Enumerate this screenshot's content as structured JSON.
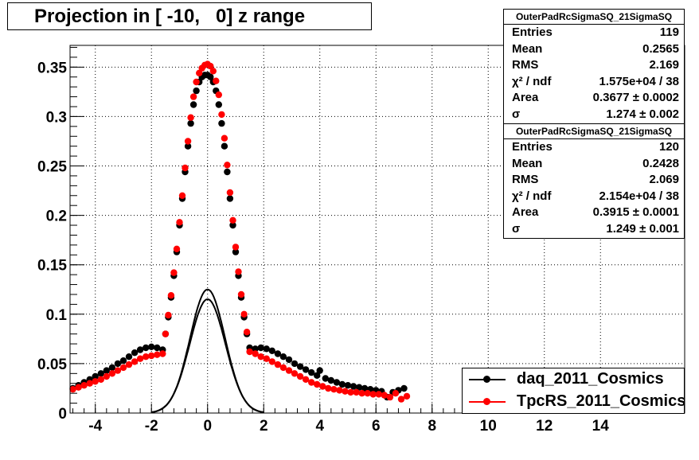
{
  "title": "Projection in [ -10,   0] z range",
  "stats_boxes": [
    {
      "name": "OuterPadRcSigmaSQ_21SigmaSQ",
      "rows": [
        {
          "label": "Entries",
          "value": "119"
        },
        {
          "label": "Mean",
          "value": "0.2565"
        },
        {
          "label": "RMS",
          "value": "2.169"
        },
        {
          "label": "χ² / ndf",
          "value": "1.575e+04 / 38"
        },
        {
          "label": "Area",
          "value": "0.3677 ± 0.0002"
        },
        {
          "label": "σ",
          "value": "1.274 ± 0.002"
        }
      ]
    },
    {
      "name": "OuterPadRcSigmaSQ_21SigmaSQ",
      "rows": [
        {
          "label": "Entries",
          "value": "120"
        },
        {
          "label": "Mean",
          "value": "0.2428"
        },
        {
          "label": "RMS",
          "value": "2.069"
        },
        {
          "label": "χ² / ndf",
          "value": "2.154e+04 / 38"
        },
        {
          "label": "Area",
          "value": "0.3915 ± 0.0001"
        },
        {
          "label": "σ",
          "value": "1.249 ± 0.001"
        }
      ]
    }
  ],
  "legend": [
    {
      "name": "daq_2011_Cosmics",
      "color": "#000000"
    },
    {
      "name": "TpcRS_2011_Cosmics",
      "color": "#ff0000"
    }
  ],
  "chart_data": {
    "type": "scatter",
    "title": "Projection in [ -10,   0] z range",
    "xlabel": "",
    "ylabel": "",
    "xlim": [
      -4.9,
      17.0
    ],
    "ylim": [
      0,
      0.372
    ],
    "x_ticks": [
      -4,
      -2,
      0,
      2,
      4,
      6,
      8,
      10,
      12,
      14
    ],
    "y_ticks": [
      0,
      0.05,
      0.1,
      0.15,
      0.2,
      0.25,
      0.3,
      0.35
    ],
    "y_tick_labels": [
      "0",
      "0.05",
      "0.1",
      "0.15",
      "0.2",
      "0.25",
      "0.3",
      "0.35"
    ],
    "grid": true,
    "legend_position": "bottom-right",
    "series": [
      {
        "name": "daq_2011_Cosmics",
        "color": "#000000",
        "points": [
          [
            -4.8,
            0.025
          ],
          [
            -4.6,
            0.028
          ],
          [
            -4.4,
            0.031
          ],
          [
            -4.2,
            0.034
          ],
          [
            -4.0,
            0.037
          ],
          [
            -3.8,
            0.04
          ],
          [
            -3.6,
            0.043
          ],
          [
            -3.4,
            0.046
          ],
          [
            -3.2,
            0.05
          ],
          [
            -3.0,
            0.053
          ],
          [
            -2.8,
            0.057
          ],
          [
            -2.6,
            0.061
          ],
          [
            -2.4,
            0.064
          ],
          [
            -2.2,
            0.066
          ],
          [
            -2.0,
            0.067
          ],
          [
            -1.8,
            0.066
          ],
          [
            -1.6,
            0.064
          ],
          [
            -1.5,
            0.08
          ],
          [
            -1.4,
            0.097
          ],
          [
            -1.3,
            0.117
          ],
          [
            -1.2,
            0.139
          ],
          [
            -1.1,
            0.163
          ],
          [
            -1.0,
            0.19
          ],
          [
            -0.9,
            0.217
          ],
          [
            -0.8,
            0.244
          ],
          [
            -0.7,
            0.27
          ],
          [
            -0.6,
            0.293
          ],
          [
            -0.5,
            0.312
          ],
          [
            -0.4,
            0.326
          ],
          [
            -0.3,
            0.335
          ],
          [
            -0.2,
            0.34
          ],
          [
            -0.1,
            0.342
          ],
          [
            0.0,
            0.342
          ],
          [
            0.1,
            0.34
          ],
          [
            0.2,
            0.335
          ],
          [
            0.3,
            0.326
          ],
          [
            0.4,
            0.312
          ],
          [
            0.5,
            0.293
          ],
          [
            0.6,
            0.27
          ],
          [
            0.7,
            0.244
          ],
          [
            0.8,
            0.217
          ],
          [
            0.9,
            0.19
          ],
          [
            1.0,
            0.163
          ],
          [
            1.1,
            0.139
          ],
          [
            1.2,
            0.117
          ],
          [
            1.3,
            0.097
          ],
          [
            1.4,
            0.08
          ],
          [
            1.5,
            0.066
          ],
          [
            1.7,
            0.065
          ],
          [
            1.9,
            0.066
          ],
          [
            2.1,
            0.065
          ],
          [
            2.3,
            0.063
          ],
          [
            2.5,
            0.06
          ],
          [
            2.7,
            0.057
          ],
          [
            2.9,
            0.054
          ],
          [
            3.1,
            0.05
          ],
          [
            3.3,
            0.047
          ],
          [
            3.5,
            0.044
          ],
          [
            3.7,
            0.041
          ],
          [
            3.9,
            0.038
          ],
          [
            4.0,
            0.043
          ],
          [
            4.2,
            0.035
          ],
          [
            4.4,
            0.033
          ],
          [
            4.6,
            0.031
          ],
          [
            4.8,
            0.029
          ],
          [
            5.0,
            0.028
          ],
          [
            5.2,
            0.027
          ],
          [
            5.4,
            0.026
          ],
          [
            5.6,
            0.025
          ],
          [
            5.8,
            0.024
          ],
          [
            6.0,
            0.023
          ],
          [
            6.2,
            0.022
          ],
          [
            6.4,
            0.016
          ],
          [
            6.6,
            0.021
          ],
          [
            6.8,
            0.023
          ],
          [
            7.0,
            0.025
          ]
        ]
      },
      {
        "name": "TpcRS_2011_Cosmics",
        "color": "#ff0000",
        "points": [
          [
            -4.8,
            0.024
          ],
          [
            -4.6,
            0.026
          ],
          [
            -4.4,
            0.028
          ],
          [
            -4.2,
            0.03
          ],
          [
            -4.0,
            0.032
          ],
          [
            -3.8,
            0.034
          ],
          [
            -3.6,
            0.037
          ],
          [
            -3.4,
            0.04
          ],
          [
            -3.2,
            0.043
          ],
          [
            -3.0,
            0.046
          ],
          [
            -2.8,
            0.049
          ],
          [
            -2.6,
            0.052
          ],
          [
            -2.4,
            0.055
          ],
          [
            -2.2,
            0.057
          ],
          [
            -2.0,
            0.058
          ],
          [
            -1.8,
            0.059
          ],
          [
            -1.6,
            0.06
          ],
          [
            -1.5,
            0.08
          ],
          [
            -1.4,
            0.099
          ],
          [
            -1.3,
            0.119
          ],
          [
            -1.2,
            0.142
          ],
          [
            -1.1,
            0.166
          ],
          [
            -1.0,
            0.193
          ],
          [
            -0.9,
            0.22
          ],
          [
            -0.8,
            0.248
          ],
          [
            -0.7,
            0.275
          ],
          [
            -0.6,
            0.299
          ],
          [
            -0.5,
            0.32
          ],
          [
            -0.4,
            0.335
          ],
          [
            -0.3,
            0.344
          ],
          [
            -0.2,
            0.349
          ],
          [
            -0.1,
            0.352
          ],
          [
            0.0,
            0.353
          ],
          [
            0.1,
            0.351
          ],
          [
            0.2,
            0.346
          ],
          [
            0.3,
            0.336
          ],
          [
            0.4,
            0.322
          ],
          [
            0.5,
            0.302
          ],
          [
            0.6,
            0.278
          ],
          [
            0.7,
            0.251
          ],
          [
            0.8,
            0.223
          ],
          [
            0.9,
            0.195
          ],
          [
            1.0,
            0.168
          ],
          [
            1.1,
            0.143
          ],
          [
            1.2,
            0.12
          ],
          [
            1.3,
            0.1
          ],
          [
            1.4,
            0.082
          ],
          [
            1.5,
            0.062
          ],
          [
            1.7,
            0.06
          ],
          [
            1.9,
            0.057
          ],
          [
            2.1,
            0.055
          ],
          [
            2.3,
            0.052
          ],
          [
            2.5,
            0.049
          ],
          [
            2.7,
            0.046
          ],
          [
            2.9,
            0.043
          ],
          [
            3.1,
            0.04
          ],
          [
            3.3,
            0.037
          ],
          [
            3.5,
            0.034
          ],
          [
            3.7,
            0.031
          ],
          [
            3.9,
            0.029
          ],
          [
            4.1,
            0.027
          ],
          [
            4.3,
            0.025
          ],
          [
            4.5,
            0.024
          ],
          [
            4.7,
            0.023
          ],
          [
            4.9,
            0.022
          ],
          [
            5.1,
            0.021
          ],
          [
            5.3,
            0.021
          ],
          [
            5.5,
            0.02
          ],
          [
            5.7,
            0.02
          ],
          [
            5.9,
            0.019
          ],
          [
            6.1,
            0.019
          ],
          [
            6.3,
            0.018
          ],
          [
            6.5,
            0.016
          ],
          [
            6.7,
            0.02
          ],
          [
            6.9,
            0.014
          ],
          [
            7.1,
            0.017
          ]
        ]
      }
    ],
    "fits": [
      {
        "name": "daq_2011_Cosmics",
        "color": "#000000",
        "area": 0.3677,
        "sigma": 1.274,
        "range": [
          -2.0,
          2.0
        ]
      },
      {
        "name": "TpcRS_2011_Cosmics",
        "color": "#000000",
        "area": 0.3915,
        "sigma": 1.249,
        "range": [
          -2.0,
          2.0
        ]
      }
    ]
  }
}
